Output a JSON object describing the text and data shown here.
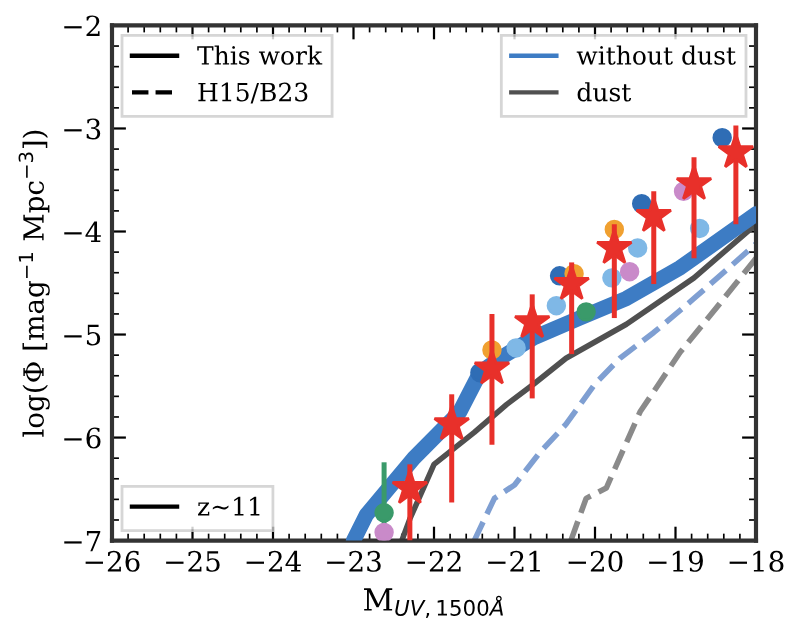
{
  "chart_data": {
    "type": "line",
    "xlabel": "M$_{UV,1500Å}$",
    "ylabel": "log(Φ [mag$^{−1}$ Mpc$^{−3}$])",
    "xlim": [
      -26,
      -18
    ],
    "ylim": [
      -7,
      -2
    ],
    "xticks": [
      -26,
      -25,
      -24,
      -23,
      -22,
      -21,
      -20,
      -19,
      -18
    ],
    "yticks": [
      -7,
      -6,
      -5,
      -4,
      -3,
      -2
    ],
    "grid": false,
    "legend": "top right",
    "annotations": [
      "This work",
      "H15/B23",
      "z~11"
    ],
    "series": [
      {
        "name": "without dust",
        "line_style": "solid",
        "color": "#3d7cc4",
        "x": [
          -23.0,
          -22.84,
          -22.25,
          -21.68,
          -21.43,
          -21.18,
          -20.76,
          -20.19,
          -19.61,
          -18.94,
          -18.0
        ],
        "values": [
          -7.0,
          -6.75,
          -6.2,
          -5.75,
          -5.37,
          -5.23,
          -5.03,
          -4.84,
          -4.65,
          -4.35,
          -3.83
        ]
      },
      {
        "name": "dust",
        "line_style": "solid",
        "color": "#505050",
        "x": [
          -22.4,
          -22.3,
          -22.0,
          -21.5,
          -21.1,
          -20.76,
          -20.36,
          -19.61,
          -18.77,
          -18.0
        ],
        "values": [
          -7.0,
          -6.79,
          -6.26,
          -5.95,
          -5.68,
          -5.48,
          -5.23,
          -4.9,
          -4.45,
          -3.93
        ]
      },
      {
        "line_style": "dashed",
        "color": "#7f9fd2",
        "x": [
          -21.5,
          -21.25,
          -21.0,
          -20.68,
          -20.36,
          -20.0,
          -19.69,
          -19.27,
          -18.77,
          -18.0
        ],
        "values": [
          -7.0,
          -6.59,
          -6.46,
          -6.14,
          -5.87,
          -5.48,
          -5.23,
          -4.98,
          -4.65,
          -4.12
        ]
      },
      {
        "line_style": "dashed",
        "color": "#8a8a8a",
        "x": [
          -20.3,
          -20.11,
          -19.86,
          -19.44,
          -18.94,
          -18.45,
          -18.0
        ],
        "values": [
          -7.0,
          -6.59,
          -6.49,
          -5.75,
          -5.17,
          -4.7,
          -4.26
        ]
      },
      {
        "type": "scatter",
        "marker": "circle",
        "color": "#2f6db5",
        "x": [
          -21.43,
          -20.44,
          -19.42,
          -18.42
        ],
        "values": [
          -5.37,
          -4.43,
          -3.73,
          -3.09
        ]
      },
      {
        "type": "scatter",
        "marker": "circle",
        "color": "#f0a030",
        "x": [
          -21.28,
          -20.26,
          -19.76
        ],
        "values": [
          -5.15,
          -4.41,
          -3.98
        ]
      },
      {
        "type": "scatter",
        "marker": "circle",
        "color": "#7fb8e6",
        "x": [
          -20.98,
          -20.48,
          -19.79,
          -19.47,
          -18.7
        ],
        "values": [
          -5.13,
          -4.72,
          -4.45,
          -4.16,
          -3.97
        ]
      },
      {
        "type": "scatter",
        "marker": "circle",
        "color": "#3a9a6a",
        "x": [
          -22.62,
          -20.11
        ],
        "values": [
          -6.73,
          -4.78
        ],
        "errors": [
          [
            -7.0,
            -6.24
          ],
          null
        ]
      },
      {
        "type": "scatter",
        "marker": "circle",
        "color": "#c98ac9",
        "x": [
          -22.62,
          -19.57,
          -18.9
        ],
        "values": [
          -6.92,
          -4.39,
          -3.61
        ]
      },
      {
        "type": "scatter",
        "marker": "star",
        "color": "#e8302a",
        "x": [
          -22.3,
          -21.78,
          -21.28,
          -20.78,
          -20.29,
          -19.76,
          -19.27,
          -18.77,
          -18.25
        ],
        "values": [
          -6.49,
          -5.87,
          -5.33,
          -4.88,
          -4.51,
          -4.16,
          -3.85,
          -3.54,
          -3.23
        ],
        "errors": [
          [
            -7.0,
            -6.26
          ],
          [
            -6.63,
            -5.58
          ],
          [
            -6.07,
            -4.8
          ],
          [
            -5.62,
            -4.61
          ],
          [
            -5.19,
            -4.3
          ],
          [
            -4.84,
            -3.93
          ],
          [
            -4.51,
            -3.61
          ],
          [
            -4.26,
            -3.28
          ],
          [
            -3.93,
            -2.97
          ]
        ]
      }
    ]
  }
}
